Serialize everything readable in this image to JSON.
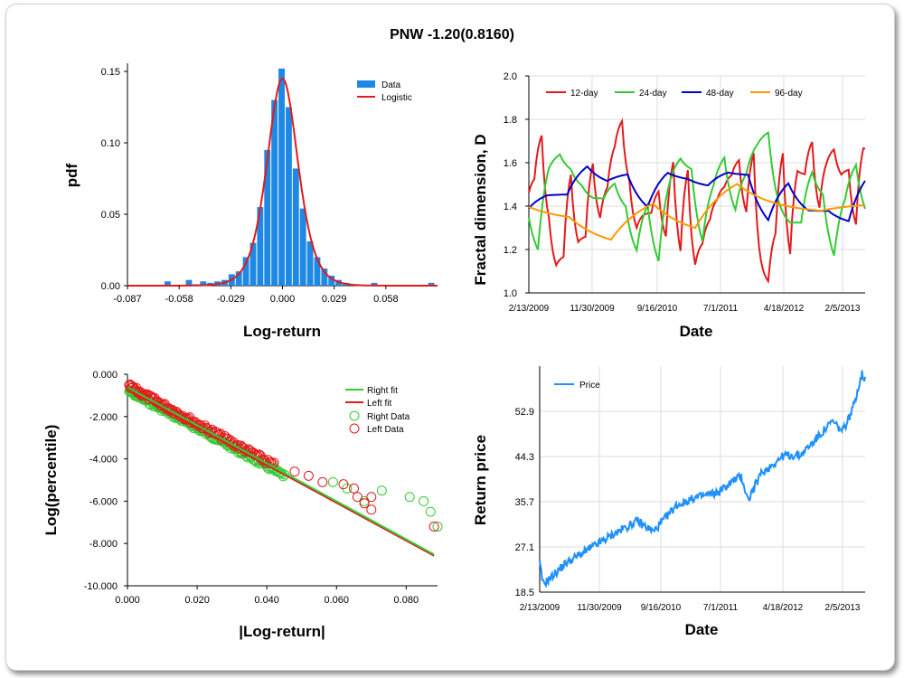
{
  "title": "PNW -1.20(0.8160)",
  "chart_data": [
    {
      "type": "bar",
      "subtype": "histogram-with-fit",
      "xlabel": "Log-return",
      "ylabel": "pdf",
      "x_ticks": [
        "-0.087",
        "-0.058",
        "-0.029",
        "0.000",
        "0.029",
        "0.058"
      ],
      "y_ticks": [
        "0.00",
        "0.05",
        "0.10",
        "0.15"
      ],
      "xlim": [
        -0.087,
        0.087
      ],
      "ylim": [
        0,
        0.15
      ],
      "legend": [
        "Data",
        "Logistic"
      ],
      "legend_position": "top-right",
      "bin_centers": [
        -0.0725,
        -0.0685,
        -0.0645,
        -0.0605,
        -0.0565,
        -0.0525,
        -0.0485,
        -0.0445,
        -0.0405,
        -0.0365,
        -0.0325,
        -0.0285,
        -0.0245,
        -0.0205,
        -0.0165,
        -0.0125,
        -0.0085,
        -0.0045,
        -0.0005,
        0.0035,
        0.0075,
        0.0115,
        0.0155,
        0.0195,
        0.0235,
        0.0275,
        0.0315,
        0.0355,
        0.0395,
        0.0435,
        0.0475,
        0.0515,
        0.0555,
        0.0595,
        0.0635,
        0.0675,
        0.0715,
        0.0755,
        0.0795,
        0.0835
      ],
      "bin_values": [
        0,
        0,
        0.003,
        0,
        0,
        0.004,
        0.001,
        0.003,
        0.002,
        0.003,
        0.004,
        0.008,
        0.01,
        0.02,
        0.03,
        0.055,
        0.095,
        0.13,
        0.152,
        0.125,
        0.082,
        0.054,
        0.031,
        0.02,
        0.012,
        0.007,
        0.004,
        0.002,
        0.001,
        0,
        0,
        0.002,
        0,
        0,
        0,
        0,
        0,
        0,
        0,
        0.002
      ],
      "fit": {
        "type": "logistic",
        "mu": 0.0,
        "s": 0.0058
      }
    },
    {
      "type": "line",
      "xlabel": "Date",
      "ylabel": "Fractal dimension, D",
      "x_ticks": [
        "2/13/2009",
        "11/30/2009",
        "9/16/2010",
        "7/1/2011",
        "4/18/2012",
        "2/5/2013"
      ],
      "y_ticks": [
        "1.0",
        "1.2",
        "1.4",
        "1.6",
        "1.8",
        "2.0"
      ],
      "ylim": [
        1.0,
        2.0
      ],
      "grid": true,
      "legend_position": "top",
      "series": [
        {
          "name": "12-day",
          "color": "#e31a1c",
          "seed": 11,
          "mean": 1.42,
          "amp": 0.28,
          "period": 7
        },
        {
          "name": "24-day",
          "color": "#33cc33",
          "seed": 23,
          "mean": 1.4,
          "amp": 0.24,
          "period": 12
        },
        {
          "name": "48-day",
          "color": "#0000cc",
          "seed": 37,
          "mean": 1.38,
          "amp": 0.17,
          "period": 22
        },
        {
          "name": "96-day",
          "color": "#ff9900",
          "seed": 53,
          "mean": 1.4,
          "amp": 0.13,
          "period": 45
        }
      ]
    },
    {
      "type": "scatter",
      "subtype": "tail-fit",
      "xlabel": "|Log-return|",
      "ylabel": "Log(percentile)",
      "x_ticks": [
        "0.000",
        "0.020",
        "0.040",
        "0.060",
        "0.080"
      ],
      "y_ticks": [
        "0.000",
        "-2.000",
        "-4.000",
        "-6.000",
        "-8.000",
        "-10.000"
      ],
      "xlim": [
        0,
        0.089
      ],
      "ylim": [
        -10,
        0
      ],
      "legend": [
        "Right fit",
        "Left fit",
        "Right Data",
        "Left Data"
      ],
      "legend_position": "top-right",
      "right_fit": {
        "x": [
          0,
          0.088
        ],
        "y": [
          -0.62,
          -8.52
        ]
      },
      "left_fit": {
        "x": [
          0,
          0.088
        ],
        "y": [
          -0.72,
          -8.58
        ]
      },
      "right_data": [
        [
          0.059,
          -5.1
        ],
        [
          0.063,
          -5.4
        ],
        [
          0.068,
          -6.0
        ],
        [
          0.073,
          -5.5
        ],
        [
          0.081,
          -5.8
        ],
        [
          0.085,
          -6.0
        ],
        [
          0.087,
          -6.5
        ],
        [
          0.089,
          -7.2
        ]
      ],
      "left_data": [
        [
          0.048,
          -4.6
        ],
        [
          0.052,
          -4.8
        ],
        [
          0.056,
          -5.1
        ],
        [
          0.062,
          -5.2
        ],
        [
          0.065,
          -5.4
        ],
        [
          0.066,
          -5.8
        ],
        [
          0.068,
          -6.1
        ],
        [
          0.07,
          -5.8
        ],
        [
          0.07,
          -6.4
        ],
        [
          0.088,
          -7.2
        ]
      ]
    },
    {
      "type": "line",
      "xlabel": "Date",
      "ylabel": "Return price",
      "x_ticks": [
        "2/13/2009",
        "11/30/2009",
        "9/16/2010",
        "7/1/2011",
        "4/18/2012",
        "2/5/2013"
      ],
      "y_ticks": [
        "18.5",
        "27.1",
        "35.7",
        "44.3",
        "52.9"
      ],
      "ylim": [
        18.5,
        61.5
      ],
      "grid": true,
      "legend": [
        "Price"
      ],
      "legend_position": "top-left",
      "series": [
        {
          "name": "Price",
          "color": "#1e90ff",
          "anchors": [
            [
              0,
              24
            ],
            [
              0.01,
              20
            ],
            [
              0.03,
              21
            ],
            [
              0.08,
              24
            ],
            [
              0.16,
              27
            ],
            [
              0.24,
              30
            ],
            [
              0.3,
              32
            ],
            [
              0.35,
              30
            ],
            [
              0.42,
              35
            ],
            [
              0.48,
              36.5
            ],
            [
              0.55,
              37.5
            ],
            [
              0.6,
              40
            ],
            [
              0.62,
              40.5
            ],
            [
              0.64,
              36
            ],
            [
              0.68,
              41
            ],
            [
              0.75,
              44.5
            ],
            [
              0.8,
              44.5
            ],
            [
              0.84,
              47
            ],
            [
              0.9,
              51
            ],
            [
              0.93,
              49
            ],
            [
              0.96,
              53
            ],
            [
              0.99,
              60
            ],
            [
              1.0,
              59
            ]
          ]
        }
      ]
    }
  ]
}
